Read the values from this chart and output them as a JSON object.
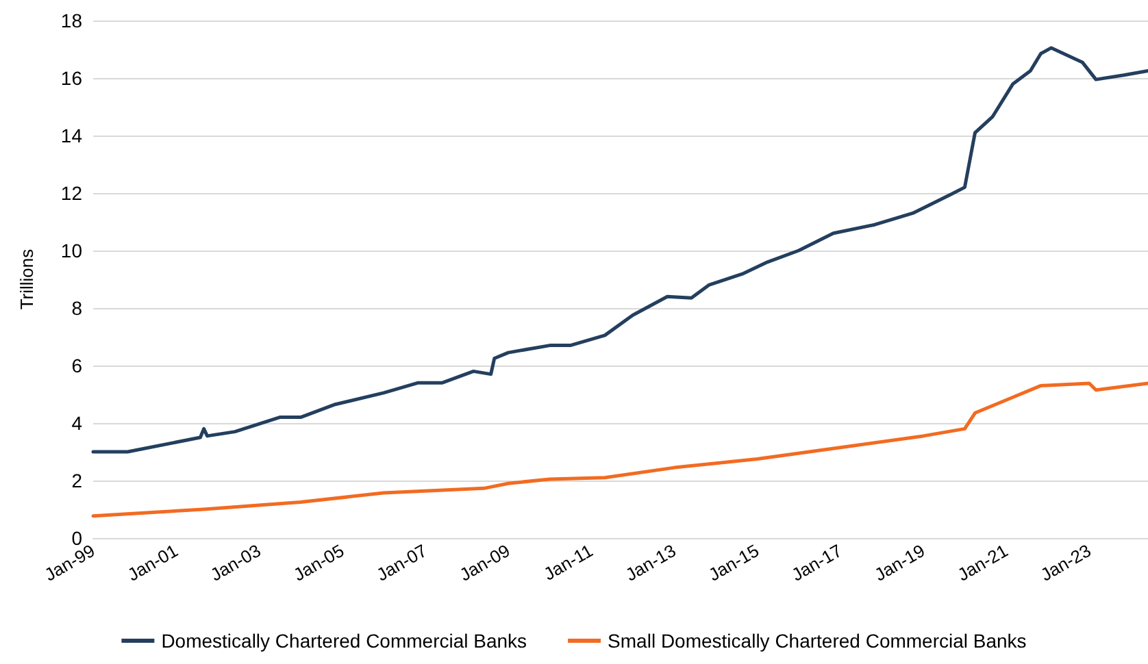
{
  "chart_data": {
    "type": "line",
    "ylabel": "Trillions",
    "xlim": [
      "1999-01",
      "2024-06"
    ],
    "ylim": [
      0,
      18
    ],
    "yticks": [
      0,
      2,
      4,
      6,
      8,
      10,
      12,
      14,
      16,
      18
    ],
    "xticks": [
      {
        "value": "1999-01",
        "label": "Jan-99"
      },
      {
        "value": "2001-01",
        "label": "Jan-01"
      },
      {
        "value": "2003-01",
        "label": "Jan-03"
      },
      {
        "value": "2005-01",
        "label": "Jan-05"
      },
      {
        "value": "2007-01",
        "label": "Jan-07"
      },
      {
        "value": "2009-01",
        "label": "Jan-09"
      },
      {
        "value": "2011-01",
        "label": "Jan-11"
      },
      {
        "value": "2013-01",
        "label": "Jan-13"
      },
      {
        "value": "2015-01",
        "label": "Jan-15"
      },
      {
        "value": "2017-01",
        "label": "Jan-17"
      },
      {
        "value": "2019-01",
        "label": "Jan-19"
      },
      {
        "value": "2021-01",
        "label": "Jan-21"
      },
      {
        "value": "2023-01",
        "label": "Jan-23"
      }
    ],
    "grid": "y",
    "legend": "bottom",
    "marker": "none",
    "line_style": "solid",
    "series": [
      {
        "name": "Domestically Chartered Commercial Banks",
        "color": "#243f5e",
        "x": [
          "1999-01",
          "1999-11",
          "2001-08",
          "2001-09",
          "2001-10",
          "2002-06",
          "2003-07",
          "2004-01",
          "2004-11",
          "2006-01",
          "2006-11",
          "2007-06",
          "2008-03",
          "2008-08",
          "2008-09",
          "2009-01",
          "2010-01",
          "2010-07",
          "2011-05",
          "2012-01",
          "2012-11",
          "2013-06",
          "2013-11",
          "2014-09",
          "2015-04",
          "2016-01",
          "2016-11",
          "2017-11",
          "2018-10",
          "2019-09",
          "2020-01",
          "2020-04",
          "2020-09",
          "2021-03",
          "2021-08",
          "2021-11",
          "2022-02",
          "2022-11",
          "2023-03",
          "2023-11",
          "2024-06"
        ],
        "values": [
          3.0,
          3.0,
          3.5,
          3.8,
          3.55,
          3.7,
          4.2,
          4.2,
          4.65,
          5.05,
          5.4,
          5.4,
          5.8,
          5.7,
          6.25,
          6.45,
          6.7,
          6.7,
          7.05,
          7.75,
          8.4,
          8.35,
          8.8,
          9.2,
          9.6,
          10.0,
          10.6,
          10.9,
          11.3,
          11.95,
          12.2,
          14.1,
          14.65,
          15.8,
          16.25,
          16.85,
          17.05,
          16.55,
          15.95,
          16.1,
          16.25
        ]
      },
      {
        "name": "Small Domestically Chartered Commercial Banks",
        "color": "#f26b21",
        "x": [
          "1999-01",
          "2001-09",
          "2004-01",
          "2006-01",
          "2008-06",
          "2009-01",
          "2010-01",
          "2011-05",
          "2013-01",
          "2015-01",
          "2017-01",
          "2019-01",
          "2020-01",
          "2020-04",
          "2021-03",
          "2021-11",
          "2023-01",
          "2023-03",
          "2024-06"
        ],
        "values": [
          0.77,
          1.0,
          1.25,
          1.57,
          1.73,
          1.9,
          2.05,
          2.1,
          2.45,
          2.75,
          3.15,
          3.55,
          3.8,
          4.35,
          4.9,
          5.3,
          5.38,
          5.15,
          5.38
        ]
      }
    ]
  }
}
